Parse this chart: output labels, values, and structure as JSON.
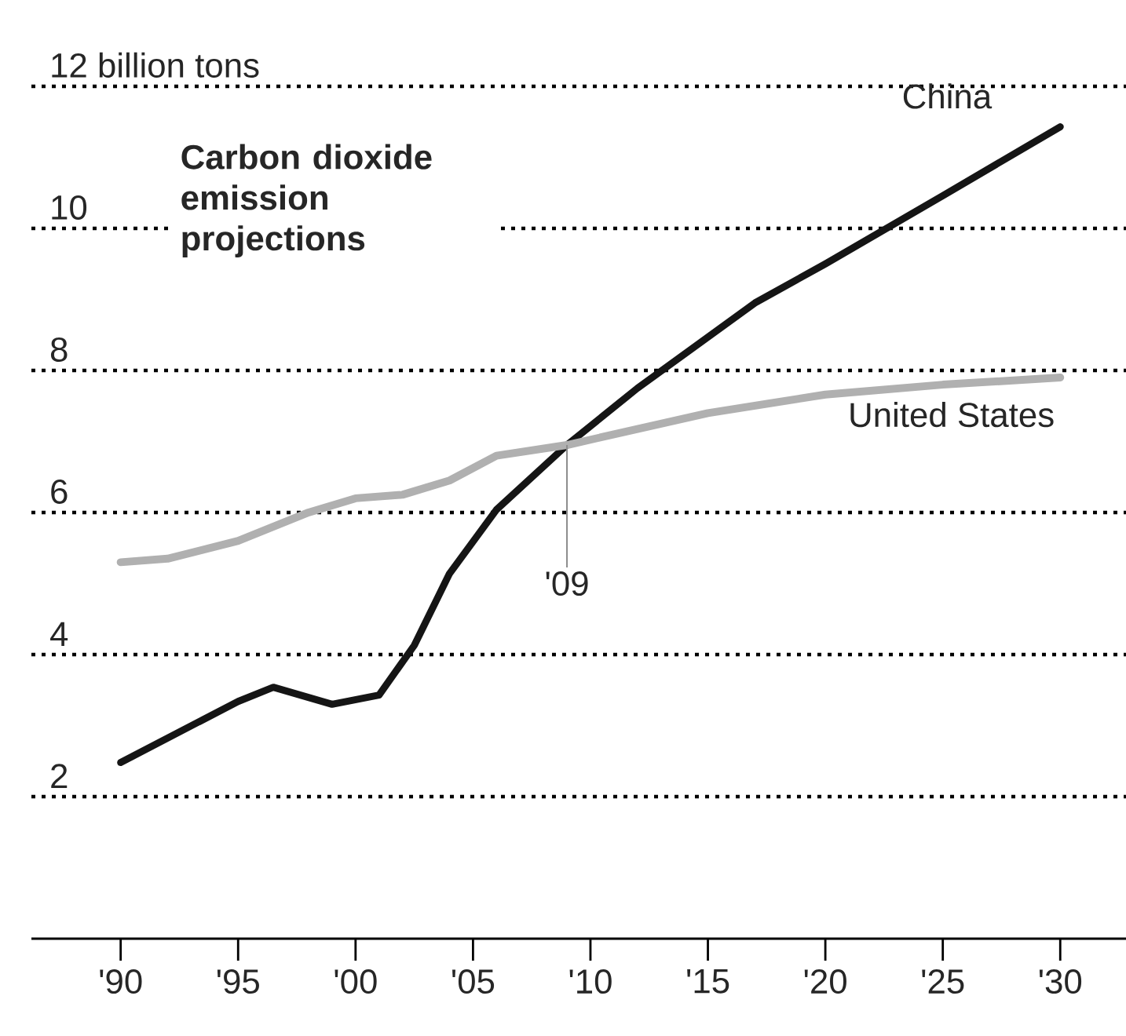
{
  "chart_data": {
    "type": "line",
    "title": "Carbon dioxide emission projections",
    "xlim": [
      1986.2,
      2032.8
    ],
    "ylim": [
      0,
      12
    ],
    "xticks": [
      {
        "value": 1990,
        "label": "'90"
      },
      {
        "value": 1995,
        "label": "'95"
      },
      {
        "value": 2000,
        "label": "'00"
      },
      {
        "value": 2005,
        "label": "'05"
      },
      {
        "value": 2010,
        "label": "'10"
      },
      {
        "value": 2015,
        "label": "'15"
      },
      {
        "value": 2020,
        "label": "'20"
      },
      {
        "value": 2025,
        "label": "'25"
      },
      {
        "value": 2030,
        "label": "'30"
      }
    ],
    "yticks": [
      2,
      4,
      6,
      8,
      10,
      {
        "value": 12,
        "label": "12 billion tons"
      }
    ],
    "grid": "y",
    "marker": "none",
    "line_style": "solid",
    "series": [
      {
        "name": "China",
        "color": "#151515",
        "x": [
          1990,
          1995,
          1996.5,
          1999,
          2001,
          2002.5,
          2004,
          2006,
          2009,
          2012,
          2017,
          2020,
          2025,
          2030
        ],
        "values": [
          2.48,
          3.34,
          3.54,
          3.3,
          3.43,
          4.13,
          5.14,
          6.04,
          6.95,
          7.75,
          8.95,
          9.5,
          10.46,
          11.43
        ]
      },
      {
        "name": "United States",
        "color": "#b0b0b0",
        "x": [
          1990,
          1992,
          1995,
          1998,
          2000,
          2002,
          2004,
          2006,
          2009,
          2015,
          2020,
          2025,
          2030
        ],
        "values": [
          5.3,
          5.35,
          5.6,
          6.0,
          6.2,
          6.25,
          6.45,
          6.8,
          6.95,
          7.4,
          7.66,
          7.8,
          7.9
        ]
      }
    ],
    "annotations": [
      {
        "text": "'09",
        "x": 2009,
        "y": 6.95
      }
    ]
  }
}
